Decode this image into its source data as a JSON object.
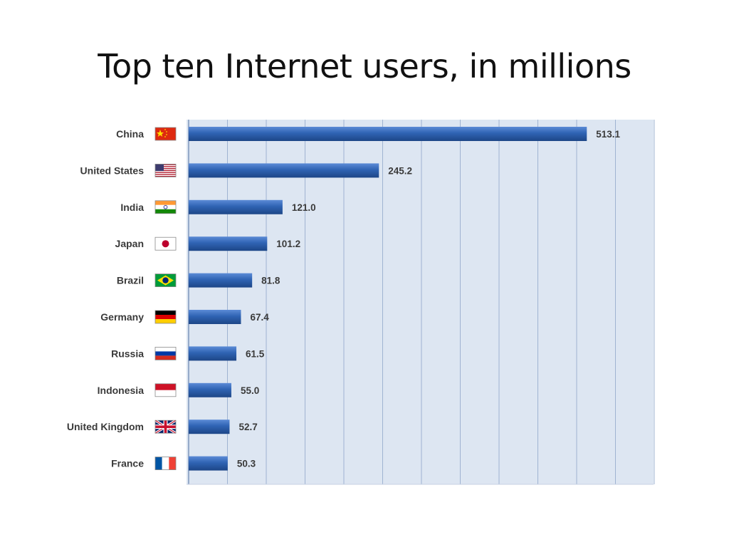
{
  "slide": {
    "title": "Top ten Internet users, in millions"
  },
  "colors": {
    "plot_background": "#dde6f2",
    "gridline": "#9fb3d2",
    "bar": "#2f63b3",
    "bar_highlight": "#5c8bd6",
    "bar_shadow": "#1d4687",
    "label_text": "#3a3a3a"
  },
  "chart_data": {
    "type": "bar",
    "orientation": "horizontal",
    "title": "Top ten Internet users, in millions",
    "categories": [
      "China",
      "United States",
      "India",
      "Japan",
      "Brazil",
      "Germany",
      "Russia",
      "Indonesia",
      "United Kingdom",
      "France"
    ],
    "values": [
      513.1,
      245.2,
      121.0,
      101.2,
      81.8,
      67.4,
      61.5,
      55.0,
      52.7,
      50.3
    ],
    "value_labels": [
      "513.1",
      "245.2",
      "121.0",
      "101.2",
      "81.8",
      "67.4",
      "61.5",
      "55.0",
      "52.7",
      "50.3"
    ],
    "flags": [
      "china-flag-icon",
      "united-states-flag-icon",
      "india-flag-icon",
      "japan-flag-icon",
      "brazil-flag-icon",
      "germany-flag-icon",
      "russia-flag-icon",
      "indonesia-flag-icon",
      "united-kingdom-flag-icon",
      "france-flag-icon"
    ],
    "xlim": [
      0,
      600
    ],
    "grid": true,
    "xlabel": "",
    "ylabel": ""
  }
}
